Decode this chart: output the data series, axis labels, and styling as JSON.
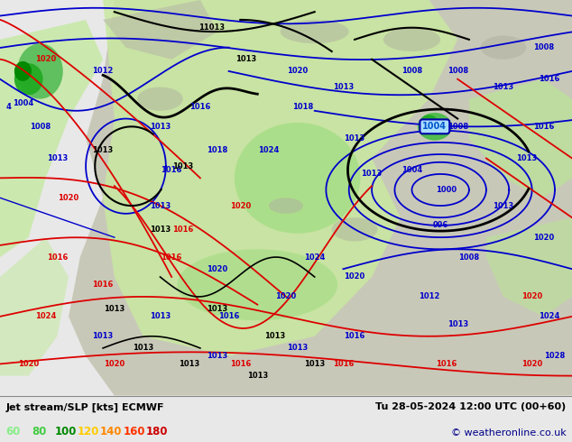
{
  "title_left": "Jet stream/SLP [kts] ECMWF",
  "title_right": "Tu 28-05-2024 12:00 UTC (00+60)",
  "copyright": "© weatheronline.co.uk",
  "legend_values": [
    "60",
    "80",
    "100",
    "120",
    "140",
    "160",
    "180"
  ],
  "legend_colors": [
    "#88ee88",
    "#44cc44",
    "#008800",
    "#ffcc00",
    "#ff8800",
    "#ff3300",
    "#cc0000"
  ],
  "bg_color": "#e8e8e8",
  "ocean_color": "#e0eef8",
  "land_color": "#d8ead8",
  "map_green_light": "#c8eab0",
  "map_green_mid": "#88cc88",
  "map_green_dark": "#44aa44",
  "map_green_bright": "#22cc22",
  "fig_width": 6.34,
  "fig_height": 4.9,
  "dpi": 100,
  "bottom_bar_color": "#d8e8f0",
  "blue_isobar": "#0000cc",
  "red_isobar": "#dd0000",
  "black_contour": "#000000"
}
